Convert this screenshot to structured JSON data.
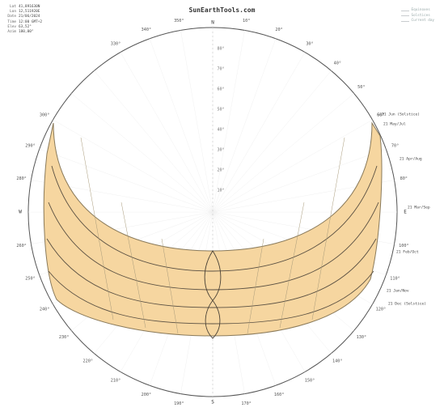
{
  "header": {
    "site_title": "SunEarthTools.com"
  },
  "info_panel": [
    {
      "key": "Lat",
      "value": "41,891630N"
    },
    {
      "key": "Lon",
      "value": "12,511920E"
    },
    {
      "key": "Date",
      "value": "21/06/2024"
    },
    {
      "key": "Time",
      "value": "12:00 GMT+2"
    },
    {
      "key": "Elev",
      "value": "63,52°"
    },
    {
      "key": "Azim",
      "value": "180,00°"
    }
  ],
  "legend": [
    {
      "label": "Equinoxes",
      "color": "#c9cccf"
    },
    {
      "label": "Solstices",
      "color": "#c9cccf"
    },
    {
      "label": "Current day",
      "color": "#c9cccf"
    }
  ],
  "compass": {
    "north": "N",
    "south": "S",
    "west": "W",
    "east": "E",
    "azimuth_labels": [
      "330°",
      "340°",
      "350°",
      "10°",
      "20°",
      "30°",
      "40°",
      "50°",
      "60°",
      "300°",
      "290°",
      "280°",
      "260°",
      "250°",
      "240°",
      "230°",
      "220°",
      "210°",
      "200°",
      "190°",
      "170°",
      "160°",
      "150°",
      "140°",
      "130°",
      "120°",
      "110°",
      "100°",
      "80°",
      "70°",
      "60°"
    ],
    "elevation_labels": [
      "80°",
      "70°",
      "60°",
      "50°",
      "40°",
      "30°",
      "20°",
      "10°"
    ]
  },
  "sun_path_labels": [
    {
      "text": "21 Jun (Solstice)",
      "style": "dark"
    },
    {
      "text": "21 May/Jul",
      "style": "dark"
    },
    {
      "text": "21 Apr/Aug",
      "style": "dark"
    },
    {
      "text": "21 Mar/Sep",
      "style": "dark"
    },
    {
      "text": "21 Feb/Oct",
      "style": "dark"
    },
    {
      "text": "21 Jan/Nov",
      "style": "dark"
    },
    {
      "text": "21 Dec (Solstice)",
      "style": "dark"
    }
  ],
  "colors": {
    "band_fill": "#f6d6a0",
    "band_stroke": "#8a7a5a",
    "circle": "#555555",
    "grid": "#d7d7d7",
    "curve": "#5a5042",
    "label_blue": "#6a7fb4"
  }
}
